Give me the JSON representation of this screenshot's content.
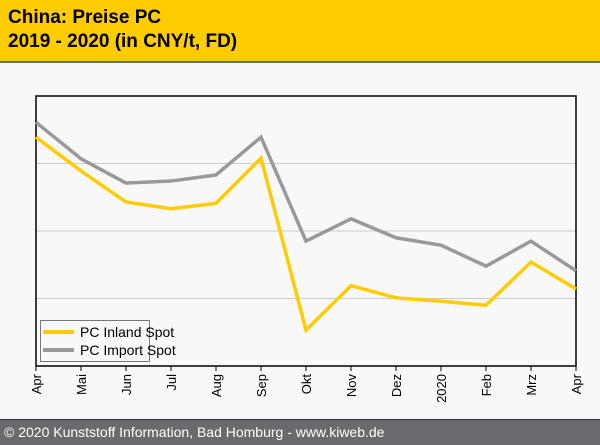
{
  "header": {
    "title_line1": "China: Preise PC",
    "title_line2": "2019 - 2020 (in CNY/t, FD)"
  },
  "footer": {
    "text": "© 2020 Kunststoff Information, Bad Homburg - www.kiweb.de"
  },
  "colors": {
    "header_bg": "#ffcc00",
    "inland": "#ffcc00",
    "import": "#999999",
    "footer_bg": "#6a6a6e"
  },
  "chart_data": {
    "type": "line",
    "title": "China: Preise PC 2019 - 2020 (in CNY/t, FD)",
    "xlabel": "",
    "ylabel": "",
    "y_units_note": "no y-axis tick labels shown; values in relative gridline units (0 = axis bottom, 4 = top)",
    "ylim": [
      0,
      4
    ],
    "grid": true,
    "legend_position": "bottom-left",
    "categories": [
      "Apr",
      "Mai",
      "Jun",
      "Jul",
      "Aug",
      "Sep",
      "Okt",
      "Nov",
      "Dez",
      "2020",
      "Feb",
      "Mrz",
      "Apr"
    ],
    "series": [
      {
        "name": "PC Inland Spot",
        "color": "#ffcc00",
        "values": [
          3.39,
          2.89,
          2.43,
          2.33,
          2.41,
          3.08,
          0.53,
          1.19,
          1.01,
          0.96,
          0.9,
          1.54,
          1.14
        ]
      },
      {
        "name": "PC Import Spot",
        "color": "#999999",
        "values": [
          3.61,
          3.07,
          2.71,
          2.74,
          2.83,
          3.39,
          1.85,
          2.18,
          1.9,
          1.79,
          1.48,
          1.85,
          1.41
        ]
      }
    ]
  }
}
